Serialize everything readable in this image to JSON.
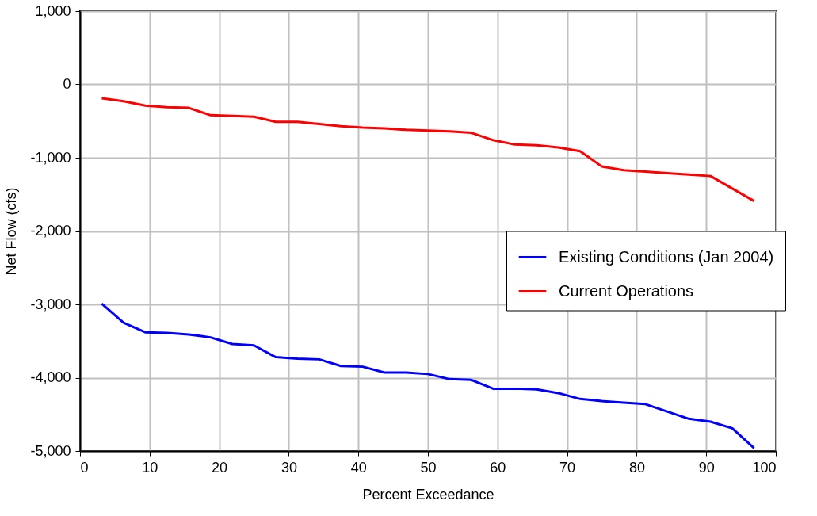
{
  "chart_data": {
    "type": "line",
    "xlabel": "Percent Exceedance",
    "ylabel": "Net Flow (cfs)",
    "xlim": [
      0,
      100
    ],
    "xticks": [
      0,
      10,
      20,
      30,
      40,
      50,
      60,
      70,
      80,
      90,
      100
    ],
    "ylim": [
      -5000,
      1000
    ],
    "yticks": [
      {
        "value": -5000,
        "label": "-5,000"
      },
      {
        "value": -4000,
        "label": "-4,000"
      },
      {
        "value": -3000,
        "label": "-3,000"
      },
      {
        "value": -2000,
        "label": "-2,000"
      },
      {
        "value": -1000,
        "label": "-1,000"
      },
      0,
      {
        "value": 1000,
        "label": "1,000"
      }
    ],
    "grid": true,
    "legend": "right",
    "marker": "none",
    "line_style": "solid",
    "x": [
      3.125,
      6.25,
      9.375,
      12.5,
      15.625,
      18.75,
      21.875,
      25,
      28.125,
      31.25,
      34.375,
      37.5,
      40.625,
      43.75,
      46.875,
      50,
      53.125,
      56.25,
      59.375,
      62.5,
      65.625,
      68.75,
      71.875,
      75,
      78.125,
      81.25,
      84.375,
      87.5,
      90.625,
      93.75,
      96.875
    ],
    "series": [
      {
        "name": "Existing Conditions (Jan 2004)",
        "color": "#0000ff",
        "values": [
          -2990,
          -3250,
          -3380,
          -3390,
          -3410,
          -3450,
          -3540,
          -3560,
          -3720,
          -3740,
          -3750,
          -3840,
          -3850,
          -3930,
          -3930,
          -3950,
          -4020,
          -4030,
          -4150,
          -4150,
          -4160,
          -4210,
          -4290,
          -4320,
          -4340,
          -4360,
          -4460,
          -4560,
          -4600,
          -4690,
          -4960
        ]
      },
      {
        "name": "Current Operations",
        "color": "#ff0000",
        "values": [
          -190,
          -230,
          -290,
          -310,
          -320,
          -420,
          -430,
          -440,
          -510,
          -510,
          -540,
          -570,
          -590,
          -600,
          -620,
          -630,
          -640,
          -660,
          -760,
          -820,
          -830,
          -860,
          -910,
          -1120,
          -1170,
          -1190,
          -1210,
          -1230,
          -1250,
          -1420,
          -1590
        ]
      }
    ]
  }
}
